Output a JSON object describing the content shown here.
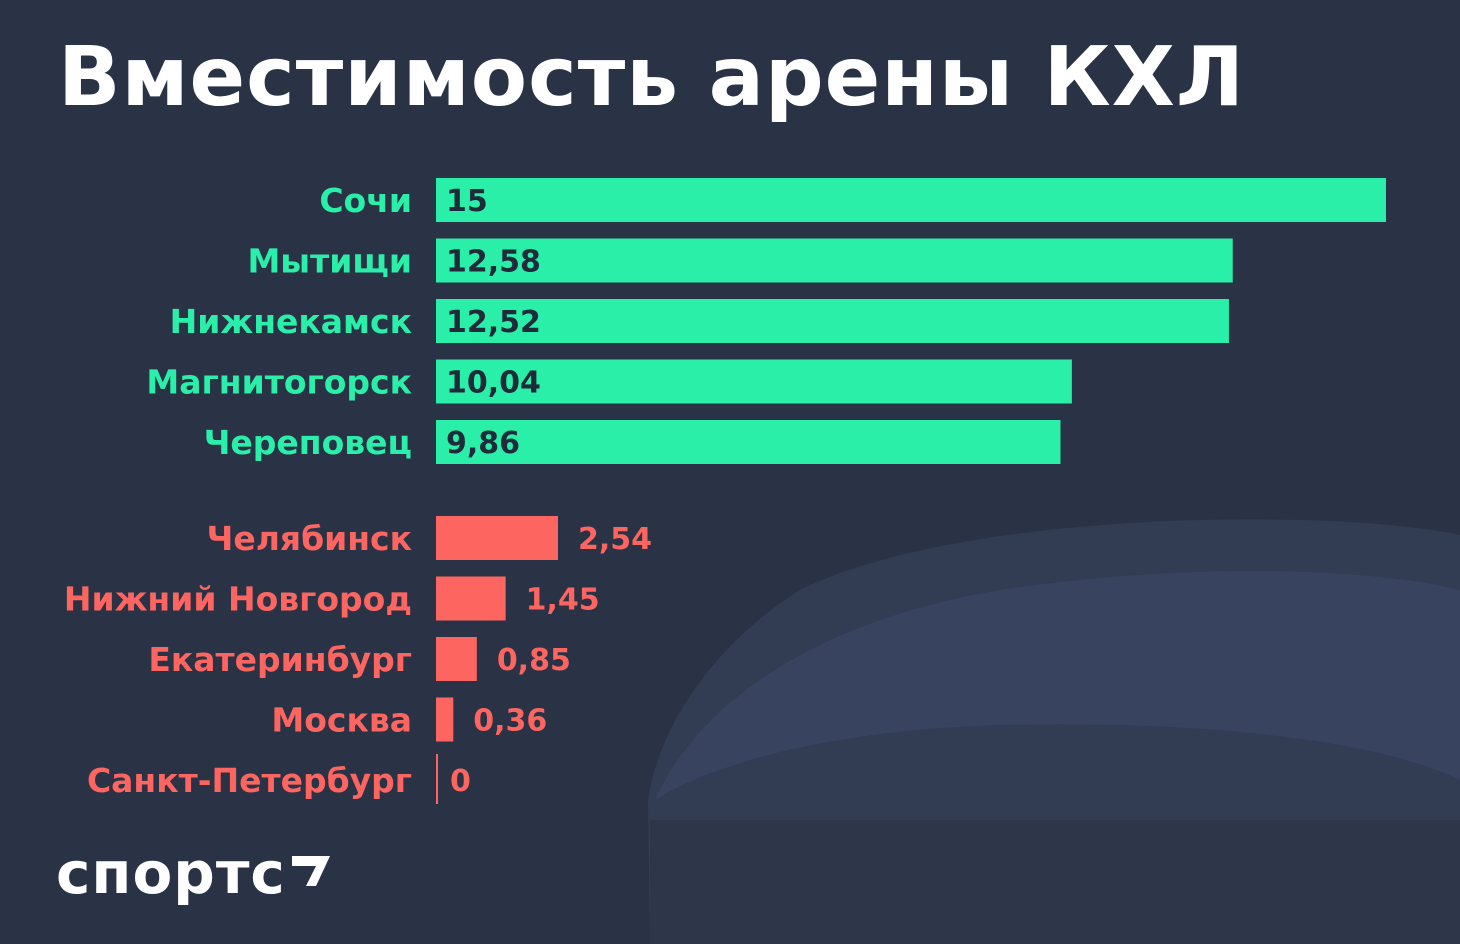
{
  "title": "Вместимость арены КХЛ",
  "logo": "спортс",
  "colors": {
    "background": "#2a3346",
    "top_bar": "#2aefa9",
    "top_value": "#1f2a3a",
    "bottom_bar": "#fd6560",
    "silhouette": "#36405a"
  },
  "chart_data": {
    "type": "bar",
    "orientation": "horizontal",
    "title": "Вместимость арены КХЛ",
    "groups": [
      {
        "color": "#2aefa9",
        "categories": [
          "Сочи",
          "Мытищи",
          "Нижнекамск",
          "Магнитогорск",
          "Череповец"
        ],
        "values": [
          15,
          12.58,
          12.52,
          10.04,
          9.86
        ],
        "labels": [
          "15",
          "12,58",
          "12,52",
          "10,04",
          "9,86"
        ]
      },
      {
        "color": "#fd6560",
        "categories": [
          "Челябинск",
          "Нижний Новгород",
          "Екатеринбург",
          "Москва",
          "Санкт-Петербург"
        ],
        "values": [
          2.54,
          1.45,
          0.85,
          0.36,
          0
        ],
        "labels": [
          "2,54",
          "1,45",
          "0,85",
          "0,36",
          "0"
        ]
      }
    ]
  }
}
